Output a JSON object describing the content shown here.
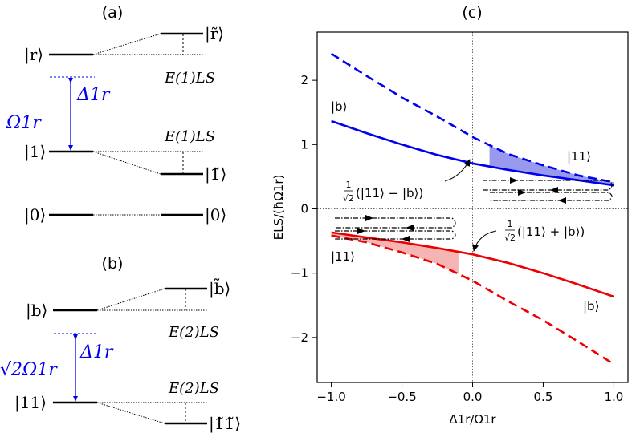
{
  "panel_labels": {
    "a": "(a)",
    "b": "(b)",
    "c": "(c)"
  },
  "panel_a": {
    "left_levels": [
      "|r⟩",
      "|1⟩",
      "|0⟩"
    ],
    "right_levels": [
      "|r̃⟩",
      "|1̃⟩",
      "|0⟩"
    ],
    "rabi": "Ω1r",
    "detuning": "Δ1r",
    "shift_label": "E(1)LS"
  },
  "panel_b": {
    "left_levels": [
      "|b⟩",
      "|11⟩"
    ],
    "right_levels": [
      "|b̃⟩",
      "|1̃1̃⟩"
    ],
    "rabi": "√2Ω1r",
    "detuning": "Δ1r",
    "shift_label": "E(2)LS"
  },
  "colors": {
    "blue": "#0000ee",
    "red": "#ee0000",
    "shade_blue": "#9999ee",
    "shade_red": "#f5b5b5"
  },
  "chart_data": {
    "type": "line",
    "xlabel": "Δ1r/Ω1r",
    "ylabel": "ELS/(ħΩ1r)",
    "xlim": [
      -1.1,
      1.1
    ],
    "ylim": [
      -2.7,
      2.75
    ],
    "xticks": [
      -1.0,
      -0.5,
      0.0,
      0.5,
      1.0
    ],
    "xtick_labels": [
      "−1.0",
      "−0.5",
      "0.0",
      "0.5",
      "1.0"
    ],
    "yticks": [
      -2,
      -1,
      0,
      1,
      2
    ],
    "ytick_labels": [
      "−2",
      "−1",
      "0",
      "1",
      "2"
    ],
    "grid": false,
    "series": [
      {
        "name": "|b⟩",
        "color": "blue",
        "style": "solid",
        "x": [
          -1.0,
          -0.75,
          -0.5,
          -0.25,
          0.0,
          0.25,
          0.5,
          0.75,
          1.0
        ],
        "y": [
          1.366,
          1.177,
          1.0,
          0.839,
          0.707,
          0.608,
          0.52,
          0.445,
          0.366
        ]
      },
      {
        "name": "|11⟩",
        "color": "blue",
        "style": "dashed",
        "x": [
          -1.0,
          -0.75,
          -0.5,
          -0.25,
          0.0,
          0.25,
          0.5,
          0.75,
          1.0
        ],
        "y": [
          2.414,
          2.068,
          1.732,
          1.436,
          1.118,
          0.855,
          0.677,
          0.52,
          0.414
        ]
      },
      {
        "name": "|11⟩",
        "color": "red",
        "style": "solid",
        "x": [
          -1.0,
          -0.75,
          -0.5,
          -0.25,
          0.0,
          0.25,
          0.5,
          0.75,
          1.0
        ],
        "y": [
          -0.366,
          -0.445,
          -0.52,
          -0.608,
          -0.707,
          -0.839,
          -1.0,
          -1.177,
          -1.366
        ]
      },
      {
        "name": "|b⟩",
        "color": "red",
        "style": "dashed",
        "x": [
          -1.0,
          -0.75,
          -0.5,
          -0.25,
          0.0,
          0.25,
          0.5,
          0.75,
          1.0
        ],
        "y": [
          -0.414,
          -0.52,
          -0.677,
          -0.855,
          -1.118,
          -1.436,
          -1.732,
          -2.068,
          -2.414
        ]
      }
    ],
    "annotations": {
      "upper_left": "|b⟩",
      "upper_right": "|11⟩",
      "lower_left": "|11⟩",
      "lower_right": "|b⟩",
      "minus_state": "(|11⟩ − |b⟩)",
      "plus_state": "(|11⟩ + |b⟩)",
      "frac_num": "1",
      "frac_den": "√2"
    }
  }
}
